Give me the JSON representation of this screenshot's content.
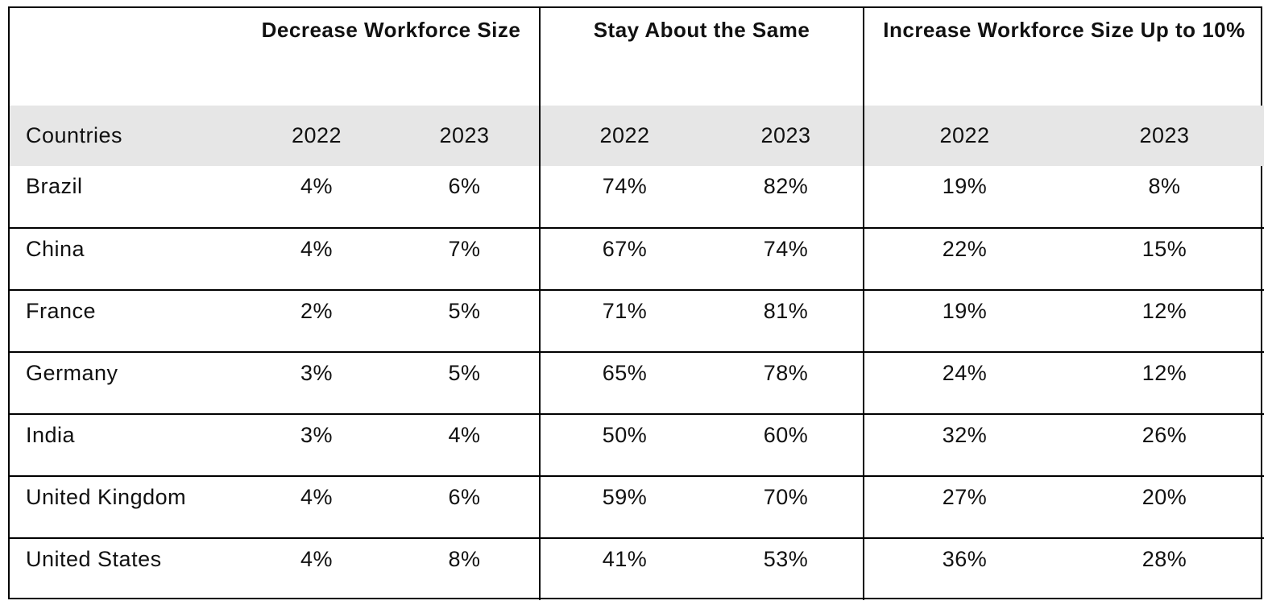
{
  "table": {
    "groups": [
      {
        "label": "Decrease Workforce Size"
      },
      {
        "label": "Stay About the Same"
      },
      {
        "label": "Increase Workforce Size Up to 10%"
      }
    ],
    "country_header": "Countries",
    "years": [
      "2022",
      "2023",
      "2022",
      "2023",
      "2022",
      "2023"
    ],
    "rows": [
      {
        "country": "Brazil",
        "values": [
          "4%",
          "6%",
          "74%",
          "82%",
          "19%",
          "8%"
        ]
      },
      {
        "country": "China",
        "values": [
          "4%",
          "7%",
          "67%",
          "74%",
          "22%",
          "15%"
        ]
      },
      {
        "country": "France",
        "values": [
          "2%",
          "5%",
          "71%",
          "81%",
          "19%",
          "12%"
        ]
      },
      {
        "country": "Germany",
        "values": [
          "3%",
          "5%",
          "65%",
          "78%",
          "24%",
          "12%"
        ]
      },
      {
        "country": "India",
        "values": [
          "3%",
          "4%",
          "50%",
          "60%",
          "32%",
          "26%"
        ]
      },
      {
        "country": "United Kingdom",
        "values": [
          "4%",
          "6%",
          "59%",
          "70%",
          "27%",
          "20%"
        ]
      },
      {
        "country": "United States",
        "values": [
          "4%",
          "8%",
          "41%",
          "53%",
          "36%",
          "28%"
        ]
      }
    ]
  }
}
